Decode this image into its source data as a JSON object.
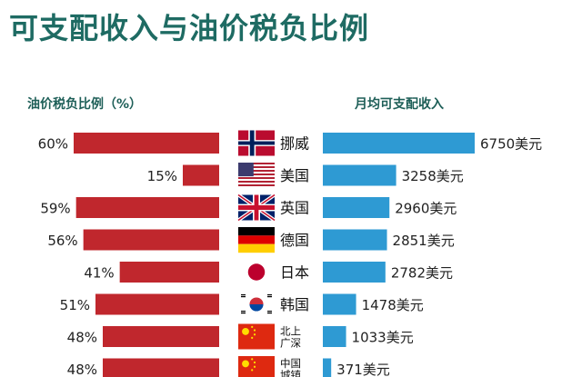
{
  "title": "可支配收入与油价税负比例",
  "chart_data": [
    {
      "type": "bar",
      "orientation": "horizontal",
      "direction": "right-to-left",
      "title": "油价税负比例（%）",
      "categories": [
        "挪威",
        "美国",
        "英国",
        "德国",
        "日本",
        "韩国",
        "北上广深",
        "中国城镇"
      ],
      "values": [
        60,
        15,
        59,
        56,
        41,
        51,
        48,
        48
      ],
      "labels": [
        "60%",
        "15%",
        "59%",
        "56%",
        "41%",
        "51%",
        "48%",
        "48%"
      ],
      "color": "#c0272d"
    },
    {
      "type": "bar",
      "orientation": "horizontal",
      "title": "月均可支配收入",
      "categories": [
        "挪威",
        "美国",
        "英国",
        "德国",
        "日本",
        "韩国",
        "北上广深",
        "中国城镇"
      ],
      "values": [
        6750,
        3258,
        2960,
        2851,
        2782,
        1478,
        1033,
        371
      ],
      "labels": [
        "6750美元",
        "3258美元",
        "2960美元",
        "2851美元",
        "2782美元",
        "1478美元",
        "1033美元",
        "371美元"
      ],
      "color": "#2e9ad3"
    }
  ],
  "countries": [
    {
      "label_lines": [
        "挪威"
      ],
      "flag": "norway-flag"
    },
    {
      "label_lines": [
        "美国"
      ],
      "flag": "usa-flag"
    },
    {
      "label_lines": [
        "英国"
      ],
      "flag": "uk-flag"
    },
    {
      "label_lines": [
        "德国"
      ],
      "flag": "germany-flag"
    },
    {
      "label_lines": [
        "日本"
      ],
      "flag": "japan-flag"
    },
    {
      "label_lines": [
        "韩国"
      ],
      "flag": "korea-flag"
    },
    {
      "label_lines": [
        "北上",
        "广深"
      ],
      "flag": "china-flag"
    },
    {
      "label_lines": [
        "中国",
        "城镇"
      ],
      "flag": "china-flag"
    }
  ]
}
